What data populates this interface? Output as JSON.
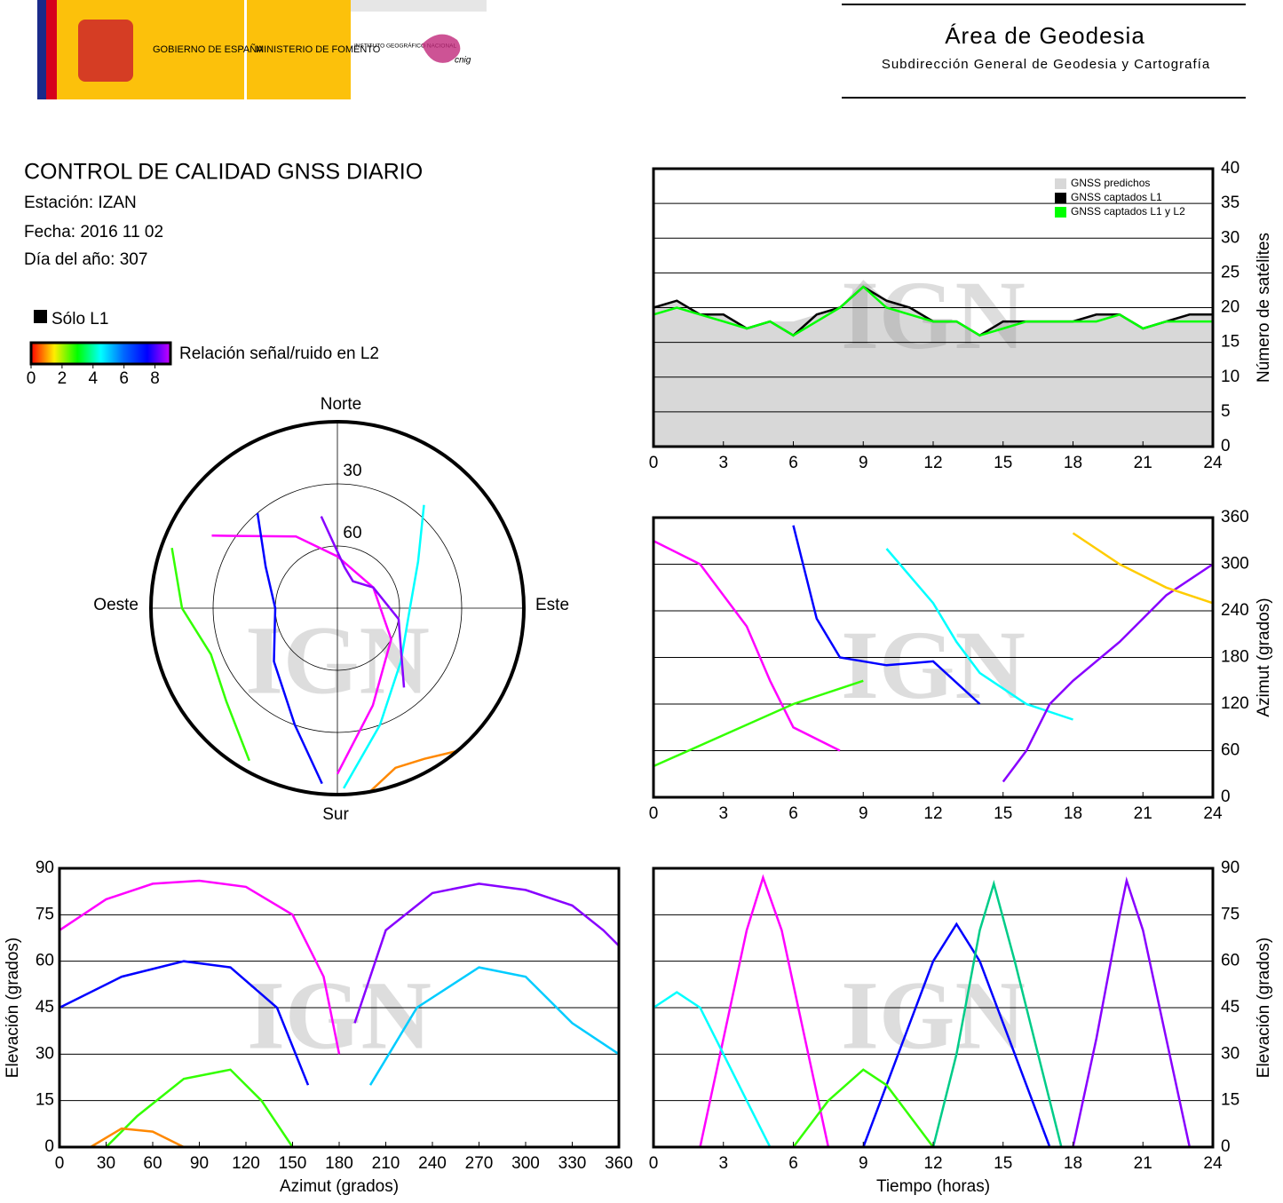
{
  "header": {
    "logos": {
      "government": "GOBIERNO DE ESPAÑA",
      "ministry": "MINISTERIO DE FOMENTO",
      "institute": "INSTITUTO GEOGRÁFICO NACIONAL",
      "cnig": "cnig"
    },
    "title": "Área de Geodesia",
    "subtitle": "Subdirección General de Geodesia y Cartografía"
  },
  "report": {
    "title": "CONTROL DE CALIDAD GNSS DIARIO",
    "station": "Estación: IZAN",
    "date": "Fecha: 2016 11 02",
    "day_of_year": "Día del año: 307"
  },
  "legend": {
    "l1_only": {
      "label": "Sólo L1",
      "color": "#000000"
    },
    "colorbar": {
      "label": "Relación señal/ruido en L2",
      "clim": [
        0,
        9
      ],
      "ticks": [
        0,
        2,
        4,
        6,
        8
      ],
      "colors": [
        "#ff0000",
        "#ffee00",
        "#00ff00",
        "#00ffff",
        "#0066ff",
        "#0000ff",
        "#cc00ff"
      ]
    }
  },
  "watermark": "IGN",
  "chart_data": [
    {
      "type": "area",
      "x": [
        0,
        1,
        2,
        3,
        4,
        5,
        6,
        7,
        8,
        9,
        10,
        11,
        12,
        13,
        14,
        15,
        16,
        17,
        18,
        19,
        20,
        21,
        22,
        23,
        24
      ],
      "xlim": [
        0,
        24
      ],
      "xticks": [
        0,
        3,
        6,
        9,
        12,
        15,
        18,
        21,
        24
      ],
      "ylim": [
        0,
        40
      ],
      "yticks": [
        0,
        5,
        10,
        15,
        20,
        25,
        30,
        35,
        40
      ],
      "y_label": "Número de satélites",
      "y_axis_side": "right",
      "grid": true,
      "legend_position": "upper right",
      "series": [
        {
          "name": "GNSS predichos",
          "color": "#d8d8d8",
          "fill": true,
          "values": [
            20,
            21,
            19,
            19,
            17,
            18,
            18,
            19,
            20,
            24,
            21,
            20,
            18,
            18,
            16,
            18,
            18,
            18,
            18,
            19,
            19,
            17,
            18,
            19,
            19
          ]
        },
        {
          "name": "GNSS captados L1",
          "color": "#000000",
          "values": [
            20,
            21,
            19,
            19,
            17,
            18,
            16,
            19,
            20,
            23,
            21,
            20,
            18,
            18,
            16,
            18,
            18,
            18,
            18,
            19,
            19,
            17,
            18,
            19,
            19
          ]
        },
        {
          "name": "GNSS captados L1 y L2",
          "color": "#00ff00",
          "values": [
            19,
            20,
            19,
            18,
            17,
            18,
            16,
            18,
            20,
            23,
            20,
            19,
            18,
            18,
            16,
            17,
            18,
            18,
            18,
            18,
            19,
            17,
            18,
            18,
            18
          ]
        }
      ]
    },
    {
      "type": "line",
      "xlim": [
        0,
        24
      ],
      "xticks": [
        0,
        3,
        6,
        9,
        12,
        15,
        18,
        21,
        24
      ],
      "ylim": [
        0,
        360
      ],
      "yticks": [
        0,
        60,
        120,
        180,
        240,
        300,
        360
      ],
      "y_label": "Azimut (grados)",
      "y_axis_side": "right",
      "grid": true,
      "series": [
        {
          "color": "#ff00ff",
          "x": [
            0,
            2,
            4,
            5,
            6,
            8
          ],
          "values": [
            330,
            300,
            220,
            150,
            90,
            60
          ]
        },
        {
          "color": "#0000ff",
          "x": [
            6,
            7,
            8,
            10,
            12,
            14
          ],
          "values": [
            350,
            230,
            180,
            170,
            175,
            120
          ]
        },
        {
          "color": "#00ffff",
          "x": [
            10,
            12,
            13,
            14,
            16,
            18
          ],
          "values": [
            320,
            250,
            200,
            160,
            120,
            100
          ]
        },
        {
          "color": "#8800ff",
          "x": [
            15,
            16,
            17,
            18,
            20,
            22,
            24
          ],
          "values": [
            20,
            60,
            120,
            150,
            200,
            260,
            300
          ]
        },
        {
          "color": "#33ff00",
          "x": [
            0,
            3,
            6,
            9
          ],
          "values": [
            40,
            80,
            120,
            150
          ]
        },
        {
          "color": "#ffcc00",
          "x": [
            18,
            20,
            22,
            24
          ],
          "values": [
            340,
            300,
            270,
            250
          ]
        }
      ]
    },
    {
      "type": "line",
      "xlim": [
        0,
        360
      ],
      "xticks": [
        0,
        30,
        60,
        90,
        120,
        150,
        180,
        210,
        240,
        270,
        300,
        330,
        360
      ],
      "ylim": [
        0,
        90
      ],
      "yticks": [
        0,
        15,
        30,
        45,
        60,
        75,
        90
      ],
      "x_label": "Azimut (grados)",
      "y_label": "Elevación (grados)",
      "y_axis_side": "left",
      "grid": true,
      "series": [
        {
          "color": "#ff00ff",
          "x": [
            0,
            30,
            60,
            90,
            120,
            150,
            170,
            180
          ],
          "values": [
            70,
            80,
            85,
            86,
            84,
            75,
            55,
            30
          ]
        },
        {
          "color": "#0000ff",
          "x": [
            0,
            40,
            80,
            110,
            140,
            160
          ],
          "values": [
            45,
            55,
            60,
            58,
            45,
            20
          ]
        },
        {
          "color": "#00ccff",
          "x": [
            200,
            230,
            270,
            300,
            330,
            360
          ],
          "values": [
            20,
            45,
            58,
            55,
            40,
            30
          ]
        },
        {
          "color": "#8800ff",
          "x": [
            190,
            210,
            240,
            270,
            300,
            330,
            350,
            360
          ],
          "values": [
            40,
            70,
            82,
            85,
            83,
            78,
            70,
            65
          ]
        },
        {
          "color": "#33ff00",
          "x": [
            30,
            50,
            80,
            110,
            130,
            150
          ],
          "values": [
            0,
            10,
            22,
            25,
            15,
            0
          ]
        },
        {
          "color": "#ff8800",
          "x": [
            20,
            40,
            60,
            80
          ],
          "values": [
            0,
            6,
            5,
            0
          ]
        }
      ]
    },
    {
      "type": "line",
      "xlim": [
        0,
        24
      ],
      "xticks": [
        0,
        3,
        6,
        9,
        12,
        15,
        18,
        21,
        24
      ],
      "ylim": [
        0,
        90
      ],
      "yticks": [
        0,
        15,
        30,
        45,
        60,
        75,
        90
      ],
      "x_label": "Tiempo (horas)",
      "y_label": "Elevación (grados)",
      "y_axis_side": "right",
      "grid": true,
      "series": [
        {
          "color": "#ff00ff",
          "x": [
            2,
            3,
            4,
            4.7,
            5.5,
            6.5,
            7.5
          ],
          "values": [
            0,
            35,
            70,
            87,
            70,
            35,
            0
          ]
        },
        {
          "color": "#0000ff",
          "x": [
            9,
            10.5,
            12,
            13,
            14,
            15.5,
            17
          ],
          "values": [
            0,
            30,
            60,
            72,
            60,
            30,
            0
          ]
        },
        {
          "color": "#00cc88",
          "x": [
            12,
            13,
            14,
            14.6,
            15.5,
            16.5,
            17.5
          ],
          "values": [
            0,
            30,
            70,
            85,
            60,
            30,
            0
          ]
        },
        {
          "color": "#8800ff",
          "x": [
            18,
            19,
            20,
            20.3,
            21,
            22,
            23
          ],
          "values": [
            0,
            35,
            75,
            86,
            70,
            35,
            0
          ]
        },
        {
          "color": "#00ffff",
          "x": [
            0,
            1,
            2,
            3,
            4,
            5
          ],
          "values": [
            45,
            50,
            45,
            30,
            15,
            0
          ]
        },
        {
          "color": "#33ff00",
          "x": [
            6,
            7.5,
            9,
            10,
            11,
            12
          ],
          "values": [
            0,
            15,
            25,
            20,
            10,
            0
          ]
        }
      ]
    },
    {
      "type": "polar",
      "direction_labels": {
        "north": "Norte",
        "south": "Sur",
        "west": "Oeste",
        "east": "Este"
      },
      "rlim": [
        90,
        0
      ],
      "rticks": [
        30,
        60
      ],
      "series": [
        {
          "color": "#ff00ff",
          "azimuth": [
            300,
            330,
            0,
            60,
            120,
            160,
            180
          ],
          "elevation": [
            20,
            50,
            65,
            70,
            60,
            40,
            10
          ]
        },
        {
          "color": "#0000ff",
          "azimuth": [
            320,
            300,
            270,
            230,
            200,
            185
          ],
          "elevation": [
            30,
            50,
            60,
            50,
            30,
            5
          ]
        },
        {
          "color": "#00ffff",
          "azimuth": [
            40,
            60,
            90,
            130,
            160,
            178
          ],
          "elevation": [
            25,
            45,
            55,
            50,
            30,
            3
          ]
        },
        {
          "color": "#8800ff",
          "azimuth": [
            350,
            10,
            30,
            60,
            100,
            140
          ],
          "elevation": [
            45,
            70,
            75,
            70,
            60,
            40
          ]
        },
        {
          "color": "#33ff00",
          "azimuth": [
            290,
            270,
            250,
            230,
            210
          ],
          "elevation": [
            5,
            15,
            25,
            20,
            5
          ]
        },
        {
          "color": "#ff8800",
          "azimuth": [
            140,
            150,
            160,
            170
          ],
          "elevation": [
            0,
            6,
            8,
            0
          ]
        }
      ]
    }
  ]
}
